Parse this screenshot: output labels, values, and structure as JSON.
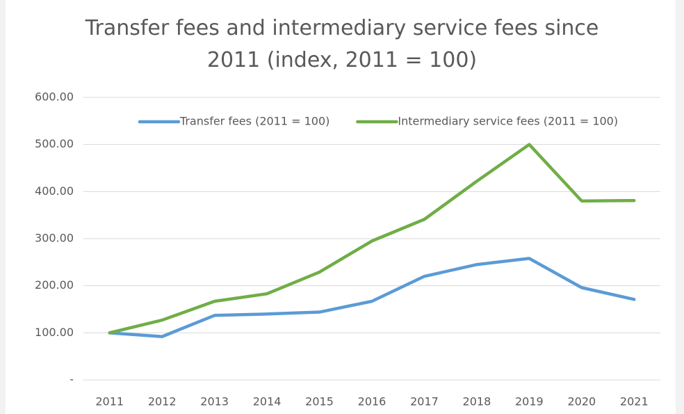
{
  "chart_data": {
    "type": "line",
    "title": "Transfer fees and intermediary service fees since 2011 (index, 2011 = 100)",
    "categories": [
      "2011",
      "2012",
      "2013",
      "2014",
      "2015",
      "2016",
      "2017",
      "2018",
      "2019",
      "2020",
      "2021"
    ],
    "series": [
      {
        "name": "Transfer fees (2011 = 100)",
        "color": "#5b9bd5",
        "values": [
          100,
          92,
          137,
          140,
          144,
          167,
          220,
          245,
          258,
          196,
          171
        ]
      },
      {
        "name": "Intermediary service fees (2011 = 100)",
        "color": "#70ad47",
        "values": [
          100,
          127,
          167,
          183,
          229,
          295,
          341,
          422,
          500,
          380,
          381
        ]
      }
    ],
    "ylim": [
      0,
      600
    ],
    "yticks": [
      {
        "value": 0,
        "label": "-"
      },
      {
        "value": 100,
        "label": "100.00"
      },
      {
        "value": 200,
        "label": "200.00"
      },
      {
        "value": 300,
        "label": "300.00"
      },
      {
        "value": 400,
        "label": "400.00"
      },
      {
        "value": 500,
        "label": "500.00"
      },
      {
        "value": 600,
        "label": "600.00"
      }
    ],
    "grid": true,
    "legend": "top"
  }
}
